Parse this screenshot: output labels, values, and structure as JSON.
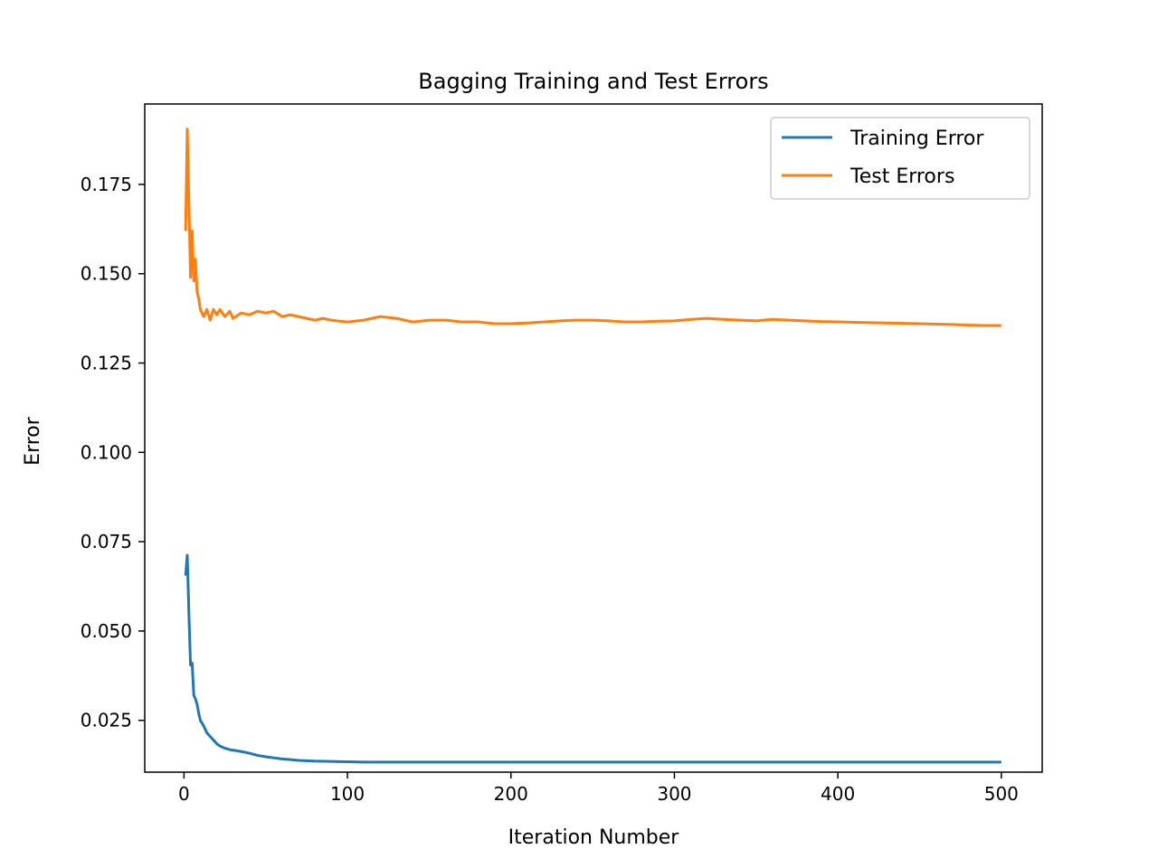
{
  "chart_data": {
    "type": "line",
    "title": "Bagging Training and Test Errors",
    "xlabel": "Iteration Number",
    "ylabel": "Error",
    "xlim": [
      -24,
      525
    ],
    "ylim": [
      0.0105,
      0.1975
    ],
    "x_ticks": [
      0,
      100,
      200,
      300,
      400,
      500
    ],
    "y_ticks": [
      0.025,
      0.05,
      0.075,
      0.1,
      0.125,
      0.15,
      0.175
    ],
    "x_tick_labels": [
      "0",
      "100",
      "200",
      "300",
      "400",
      "500"
    ],
    "y_tick_labels": [
      "0.025",
      "0.050",
      "0.075",
      "0.100",
      "0.125",
      "0.150",
      "0.175"
    ],
    "grid": false,
    "legend_position": "top-right",
    "series": [
      {
        "name": "Training Error",
        "color": "#1f77b4",
        "points": [
          [
            1,
            0.0655
          ],
          [
            2,
            0.0712
          ],
          [
            3,
            0.055
          ],
          [
            4,
            0.0405
          ],
          [
            5,
            0.041
          ],
          [
            6,
            0.032
          ],
          [
            7,
            0.031
          ],
          [
            8,
            0.0295
          ],
          [
            9,
            0.027
          ],
          [
            10,
            0.025
          ],
          [
            12,
            0.0235
          ],
          [
            14,
            0.0215
          ],
          [
            16,
            0.0205
          ],
          [
            18,
            0.0195
          ],
          [
            20,
            0.0185
          ],
          [
            22,
            0.0178
          ],
          [
            25,
            0.0172
          ],
          [
            28,
            0.0168
          ],
          [
            32,
            0.0165
          ],
          [
            36,
            0.0162
          ],
          [
            40,
            0.0158
          ],
          [
            45,
            0.0152
          ],
          [
            50,
            0.0148
          ],
          [
            55,
            0.0145
          ],
          [
            60,
            0.0142
          ],
          [
            65,
            0.014
          ],
          [
            70,
            0.0138
          ],
          [
            75,
            0.0137
          ],
          [
            80,
            0.0136
          ],
          [
            90,
            0.0135
          ],
          [
            100,
            0.0134
          ],
          [
            110,
            0.0133
          ],
          [
            150,
            0.0133
          ],
          [
            200,
            0.0133
          ],
          [
            250,
            0.0133
          ],
          [
            300,
            0.0133
          ],
          [
            350,
            0.0133
          ],
          [
            400,
            0.0133
          ],
          [
            450,
            0.0133
          ],
          [
            500,
            0.0133
          ]
        ]
      },
      {
        "name": "Test Errors",
        "color": "#ff7f0e",
        "points": [
          [
            1,
            0.162
          ],
          [
            2,
            0.1905
          ],
          [
            3,
            0.17
          ],
          [
            4,
            0.149
          ],
          [
            5,
            0.162
          ],
          [
            6,
            0.148
          ],
          [
            7,
            0.154
          ],
          [
            8,
            0.145
          ],
          [
            9,
            0.143
          ],
          [
            10,
            0.14
          ],
          [
            12,
            0.138
          ],
          [
            14,
            0.14
          ],
          [
            16,
            0.137
          ],
          [
            18,
            0.14
          ],
          [
            20,
            0.1385
          ],
          [
            22,
            0.14
          ],
          [
            25,
            0.138
          ],
          [
            28,
            0.1395
          ],
          [
            30,
            0.1375
          ],
          [
            35,
            0.139
          ],
          [
            40,
            0.1385
          ],
          [
            45,
            0.1395
          ],
          [
            50,
            0.139
          ],
          [
            55,
            0.1395
          ],
          [
            60,
            0.138
          ],
          [
            65,
            0.1385
          ],
          [
            70,
            0.138
          ],
          [
            75,
            0.1375
          ],
          [
            80,
            0.137
          ],
          [
            85,
            0.1375
          ],
          [
            90,
            0.137
          ],
          [
            100,
            0.1365
          ],
          [
            110,
            0.137
          ],
          [
            120,
            0.138
          ],
          [
            130,
            0.1375
          ],
          [
            140,
            0.1365
          ],
          [
            150,
            0.137
          ],
          [
            160,
            0.137
          ],
          [
            170,
            0.1365
          ],
          [
            180,
            0.1365
          ],
          [
            190,
            0.136
          ],
          [
            200,
            0.136
          ],
          [
            210,
            0.1362
          ],
          [
            220,
            0.1365
          ],
          [
            230,
            0.1368
          ],
          [
            240,
            0.137
          ],
          [
            250,
            0.137
          ],
          [
            260,
            0.1368
          ],
          [
            270,
            0.1365
          ],
          [
            280,
            0.1365
          ],
          [
            290,
            0.1367
          ],
          [
            300,
            0.1368
          ],
          [
            310,
            0.1372
          ],
          [
            320,
            0.1375
          ],
          [
            330,
            0.1372
          ],
          [
            340,
            0.137
          ],
          [
            350,
            0.1368
          ],
          [
            360,
            0.1372
          ],
          [
            370,
            0.137
          ],
          [
            380,
            0.1368
          ],
          [
            390,
            0.1366
          ],
          [
            400,
            0.1365
          ],
          [
            410,
            0.1364
          ],
          [
            420,
            0.1363
          ],
          [
            430,
            0.1362
          ],
          [
            440,
            0.1361
          ],
          [
            450,
            0.136
          ],
          [
            460,
            0.1359
          ],
          [
            470,
            0.1358
          ],
          [
            480,
            0.1356
          ],
          [
            490,
            0.1355
          ],
          [
            500,
            0.1355
          ]
        ]
      }
    ]
  }
}
